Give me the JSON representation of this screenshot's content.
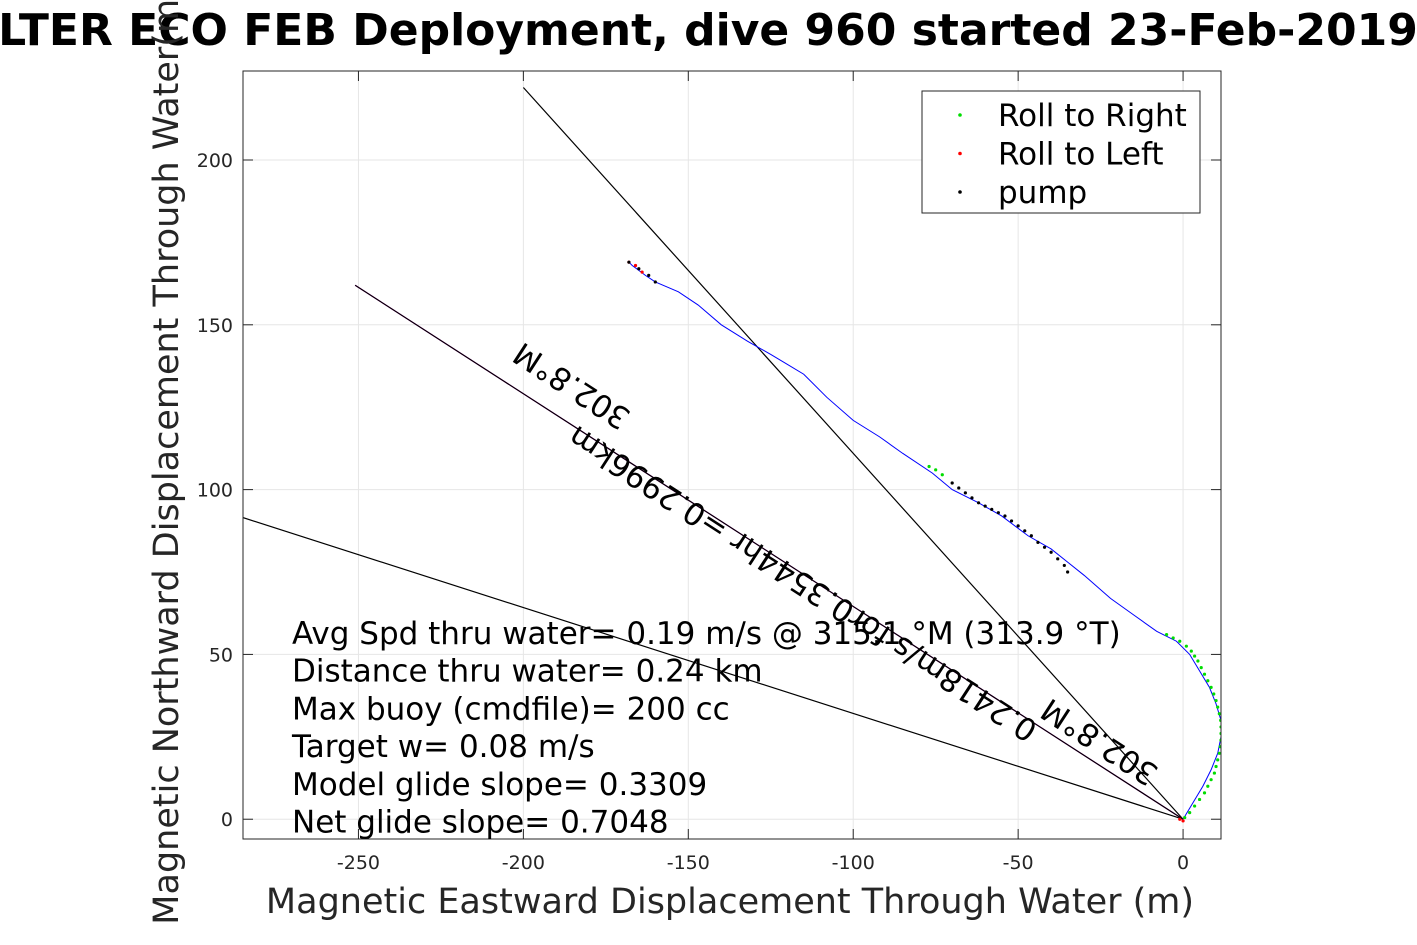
{
  "chart_data": {
    "type": "scatter",
    "title": "LTER ECO FEB Deployment, dive 960 started 23-Feb-2019",
    "xlabel": "Magnetic Eastward Displacement Through Water (m)",
    "ylabel": "Magnetic Northward Displacement Through Water(m)",
    "xlim": [
      -285,
      11.5
    ],
    "ylim": [
      -6,
      227
    ],
    "xticks": [
      -250,
      -200,
      -150,
      -100,
      -50,
      0
    ],
    "yticks": [
      0,
      50,
      100,
      150,
      200
    ],
    "grid": true,
    "legend_position": "top-right",
    "legend": [
      {
        "name": "Roll to Right",
        "color": "#00dd00"
      },
      {
        "name": "Roll to Left",
        "color": "#ff0000"
      },
      {
        "name": "pump",
        "color": "#000000"
      }
    ],
    "track": {
      "color": "#0000ff",
      "points": [
        [
          0,
          0
        ],
        [
          3,
          5
        ],
        [
          6,
          10
        ],
        [
          8.5,
          15
        ],
        [
          10.5,
          20
        ],
        [
          11.5,
          25
        ],
        [
          11.5,
          30
        ],
        [
          10,
          35
        ],
        [
          8,
          40
        ],
        [
          5,
          45
        ],
        [
          2,
          50
        ],
        [
          -2,
          54
        ],
        [
          -8,
          57
        ],
        [
          -15,
          62
        ],
        [
          -22,
          67
        ],
        [
          -30,
          74
        ],
        [
          -35,
          78
        ],
        [
          -40,
          82
        ],
        [
          -47,
          86
        ],
        [
          -55,
          92
        ],
        [
          -62,
          96
        ],
        [
          -70,
          100
        ],
        [
          -76,
          105
        ],
        [
          -85,
          111
        ],
        [
          -92,
          116
        ],
        [
          -100,
          121
        ],
        [
          -108,
          128
        ],
        [
          -115,
          135
        ],
        [
          -120,
          138
        ],
        [
          -125,
          141
        ],
        [
          -132,
          145
        ],
        [
          -140,
          150
        ],
        [
          -147,
          156
        ],
        [
          -153,
          160
        ],
        [
          -160,
          163
        ],
        [
          -163,
          165
        ],
        [
          -167,
          168
        ],
        [
          -168,
          169
        ]
      ]
    },
    "roll_right_points": [
      [
        0.5,
        0.5
      ],
      [
        2,
        2
      ],
      [
        3.5,
        4
      ],
      [
        5,
        6
      ],
      [
        6.5,
        8
      ],
      [
        7.5,
        10
      ],
      [
        8.5,
        12
      ],
      [
        9.5,
        14
      ],
      [
        10,
        16
      ],
      [
        10.5,
        18
      ],
      [
        11,
        20
      ],
      [
        11.3,
        22
      ],
      [
        11.5,
        24
      ],
      [
        11.5,
        26
      ],
      [
        11.5,
        28
      ],
      [
        11.4,
        30
      ],
      [
        11,
        32
      ],
      [
        10.5,
        34
      ],
      [
        10,
        36
      ],
      [
        9.3,
        38
      ],
      [
        8.5,
        40
      ],
      [
        7.5,
        42
      ],
      [
        6.5,
        44
      ],
      [
        5.5,
        46
      ],
      [
        4.5,
        48
      ],
      [
        3.5,
        49.5
      ],
      [
        2.5,
        51
      ],
      [
        1,
        52.5
      ],
      [
        -1,
        54
      ],
      [
        -3,
        55
      ],
      [
        -5,
        56
      ],
      [
        -75,
        106
      ],
      [
        -77,
        107
      ],
      [
        -73,
        104.5
      ]
    ],
    "roll_left_points": [
      [
        0,
        -0.5
      ],
      [
        -1,
        0
      ],
      [
        -168,
        169
      ],
      [
        -166,
        168
      ],
      [
        -164,
        166
      ]
    ],
    "pump_points": [
      [
        -70,
        102
      ],
      [
        -68,
        100.5
      ],
      [
        -66,
        99
      ],
      [
        -64,
        97.5
      ],
      [
        -62,
        96
      ],
      [
        -60,
        95
      ],
      [
        -58,
        94
      ],
      [
        -56,
        93
      ],
      [
        -54,
        92
      ],
      [
        -52,
        90.5
      ],
      [
        -50,
        89
      ],
      [
        -48,
        87.5
      ],
      [
        -46,
        86
      ],
      [
        -44,
        84
      ],
      [
        -42,
        82.5
      ],
      [
        -40,
        81
      ],
      [
        -38,
        79
      ],
      [
        -36,
        77
      ],
      [
        -35,
        75
      ],
      [
        -168,
        169
      ],
      [
        -165,
        167
      ],
      [
        -162,
        165
      ],
      [
        -160,
        163
      ]
    ],
    "reference_lines": [
      {
        "name": "net glide",
        "color": "#000000",
        "points": [
          [
            0,
            0
          ],
          [
            -200,
            222
          ]
        ]
      },
      {
        "name": "model glide",
        "color": "#000000",
        "points": [
          [
            0,
            0
          ],
          [
            -285,
            91.5
          ]
        ]
      },
      {
        "name": "heading",
        "color": "#ff00ff",
        "points": [
          [
            0,
            0
          ],
          [
            -251,
            162
          ]
        ]
      },
      {
        "name": "heading-overlay",
        "color": "#000000",
        "points": [
          [
            0,
            0
          ],
          [
            -251,
            162
          ]
        ]
      }
    ],
    "line_labels": [
      {
        "text": "302.8°M",
        "x": -185,
        "y": 132,
        "angle": 213
      },
      {
        "text": "0.2418m/s for0.3544hr =0.2996km",
        "x": -115,
        "y": 72,
        "angle": 213
      },
      {
        "text": "302.8°M",
        "x": -25,
        "y": 24,
        "angle": 213
      }
    ],
    "annotations": [
      "Avg Spd thru water=  0.19 m/s @ 315.1 °M (313.9 °T)",
      "Distance thru water=  0.24 km",
      "Max buoy (cmdfile)= 200 cc",
      "Target w= 0.08 m/s",
      "Model glide slope= 0.3309",
      "Net glide slope= 0.7048"
    ]
  }
}
